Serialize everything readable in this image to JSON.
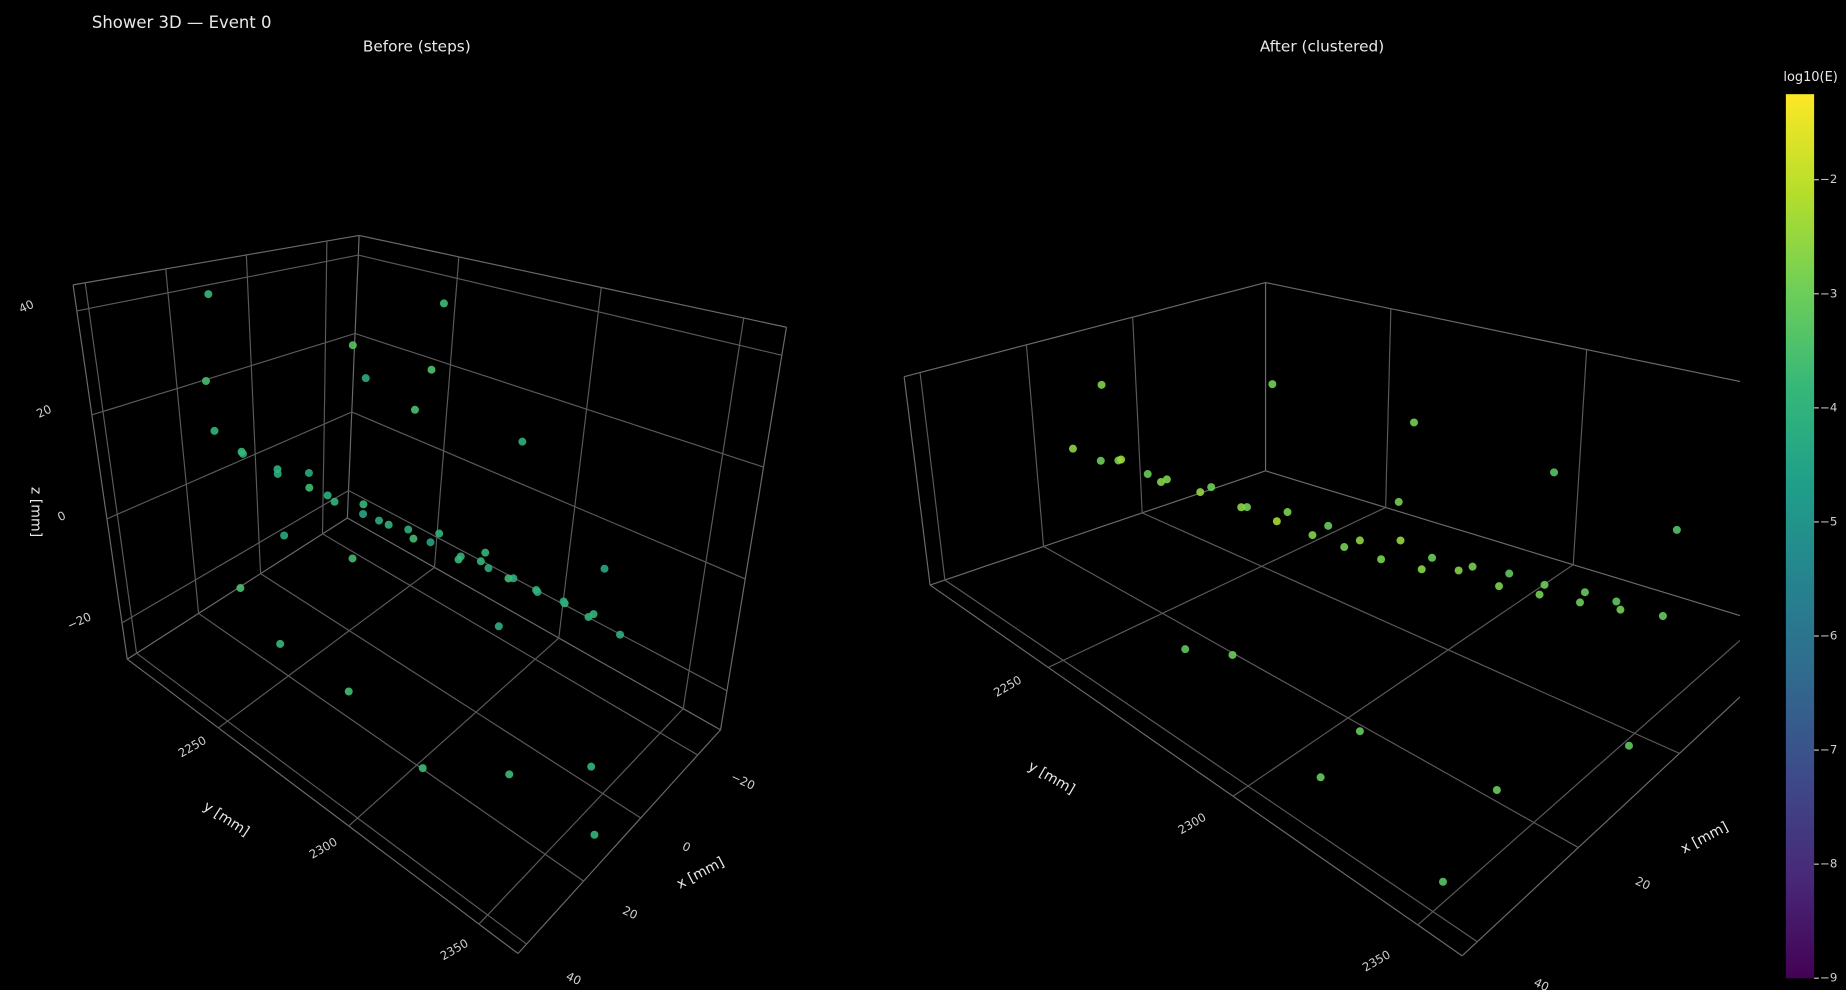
{
  "title": "Shower 3D — Event 0",
  "chart_data": [
    {
      "type": "scatter3d",
      "title": "Before (steps)",
      "x_label": "x [mm]",
      "y_label": "y [mm]",
      "z_label": "z [mm]",
      "xlim": [
        -28,
        43
      ],
      "ylim": [
        2215,
        2365
      ],
      "zlim": [
        -27,
        45
      ],
      "xticks": [
        {
          "value": -20,
          "label": "−20"
        },
        0,
        20,
        40
      ],
      "yticks": [
        2250,
        2300,
        2350
      ],
      "zticks": [
        {
          "value": -20,
          "label": "−20"
        },
        0,
        20,
        40
      ],
      "x": [
        16,
        13,
        17,
        11,
        14,
        9,
        12,
        8,
        13,
        6,
        9,
        4,
        10,
        3,
        7,
        1,
        6,
        0,
        4,
        -2,
        3,
        -4,
        1,
        -5,
        -1,
        -7,
        -3,
        -8,
        -5,
        -9,
        30,
        -15,
        20,
        -20,
        35,
        5,
        25,
        -10,
        40,
        -22,
        10,
        -5,
        28,
        15,
        -18,
        38,
        0,
        22,
        -25,
        12
      ],
      "y": [
        2222,
        2228,
        2233,
        2238,
        2242,
        2247,
        2251,
        2255,
        2259,
        2263,
        2267,
        2270,
        2274,
        2278,
        2281,
        2285,
        2288,
        2292,
        2296,
        2300,
        2303,
        2307,
        2311,
        2315,
        2319,
        2323,
        2327,
        2331,
        2336,
        2342,
        2240,
        2260,
        2300,
        2230,
        2320,
        2350,
        2280,
        2300,
        2260,
        2320,
        2215,
        2245,
        2340,
        2330,
        2280,
        2300,
        2225,
        2250,
        2250,
        2360
      ],
      "z": [
        12,
        8,
        11,
        6,
        9,
        5,
        10,
        4,
        8,
        3,
        7,
        2,
        6,
        1,
        5,
        3,
        4,
        0,
        2,
        -1,
        3,
        -2,
        1,
        -3,
        0,
        -4,
        -1,
        -5,
        -2,
        -6,
        30,
        25,
        35,
        15,
        -15,
        -20,
        -18,
        20,
        0,
        -5,
        38,
        30,
        10,
        -22,
        -10,
        15,
        -15,
        -20,
        35,
        -25
      ],
      "log10E": [
        -3.9,
        -4.1,
        -3.8,
        -4.2,
        -4.0,
        -3.7,
        -4.3,
        -3.9,
        -4.1,
        -4.4,
        -3.8,
        -4.0,
        -4.2,
        -3.6,
        -4.1,
        -3.9,
        -4.5,
        -4.0,
        -3.8,
        -4.2,
        -3.9,
        -4.1,
        -3.7,
        -4.3,
        -4.0,
        -3.8,
        -4.2,
        -4.0,
        -3.9,
        -4.1,
        -3.6,
        -3.4,
        -3.5,
        -4.2,
        -3.7,
        -3.9,
        -3.6,
        -4.0,
        -3.5,
        -4.4,
        -3.8,
        -3.3,
        -4.1,
        -3.7,
        -3.9,
        -3.6,
        -4.3,
        -3.8,
        -3.7,
        -3.9
      ]
    },
    {
      "type": "scatter3d",
      "title": "After (clustered)",
      "x_label": "x [mm]",
      "y_label": "y [mm]",
      "xlim": [
        -25,
        43
      ],
      "ylim": [
        2218,
        2362
      ],
      "zlim": [
        -25,
        45
      ],
      "xticks": [
        0,
        20,
        40
      ],
      "yticks": [
        2250,
        2300,
        2350
      ],
      "x": [
        17,
        12,
        15,
        10,
        14,
        8,
        13,
        7,
        11,
        5,
        10,
        3,
        9,
        2,
        8,
        0,
        6,
        -1,
        4,
        -3,
        2,
        -5,
        0,
        -6,
        -2,
        -8,
        -4,
        -9,
        -6,
        -10,
        30,
        -15,
        25,
        5,
        35,
        -20,
        15,
        40,
        -10,
        20,
        30,
        -22,
        0,
        10,
        38
      ],
      "y": [
        2224,
        2229,
        2234,
        2239,
        2243,
        2248,
        2252,
        2256,
        2260,
        2264,
        2268,
        2272,
        2276,
        2279,
        2283,
        2287,
        2290,
        2294,
        2298,
        2302,
        2305,
        2309,
        2313,
        2317,
        2321,
        2325,
        2329,
        2332,
        2337,
        2343,
        2250,
        2270,
        2310,
        2355,
        2290,
        2300,
        2230,
        2320,
        2240,
        2340,
        2270,
        2330,
        2220,
        2300,
        2350
      ],
      "z": [
        11,
        7,
        12,
        5,
        9,
        6,
        10,
        3,
        8,
        4,
        7,
        2,
        6,
        0,
        5,
        2,
        3,
        -1,
        2,
        -2,
        3,
        -3,
        0,
        -4,
        -1,
        -5,
        -2,
        -6,
        -3,
        -7,
        30,
        20,
        -18,
        -20,
        0,
        10,
        35,
        -10,
        25,
        -22,
        -15,
        0,
        -10,
        28,
        -20
      ],
      "log10E": [
        -2.6,
        -2.9,
        -2.4,
        -2.8,
        -2.7,
        -3.0,
        -2.5,
        -2.9,
        -2.6,
        -2.8,
        -2.3,
        -3.1,
        -2.7,
        -2.6,
        -2.9,
        -2.5,
        -2.8,
        -3.0,
        -2.6,
        -2.9,
        -2.7,
        -3.2,
        -2.8,
        -3.0,
        -2.9,
        -3.1,
        -3.0,
        -3.2,
        -2.9,
        -3.1,
        -3.0,
        -2.9,
        -3.1,
        -3.2,
        -3.0,
        -3.3,
        -2.8,
        -3.1,
        -2.9,
        -3.0,
        -3.2,
        -3.4,
        -3.1,
        -2.9,
        -3.3
      ]
    }
  ],
  "colorbar": {
    "title": "log10(E)",
    "colorscale": "Viridis",
    "lim": [
      -9,
      -1.25
    ],
    "ticks": [
      {
        "value": -2,
        "label": "−2"
      },
      {
        "value": -3,
        "label": "−3"
      },
      {
        "value": -4,
        "label": "−4"
      },
      {
        "value": -5,
        "label": "−5"
      },
      {
        "value": -6,
        "label": "−6"
      },
      {
        "value": -7,
        "label": "−7"
      },
      {
        "value": -8,
        "label": "−8"
      },
      {
        "value": -9,
        "label": "−9"
      }
    ]
  }
}
